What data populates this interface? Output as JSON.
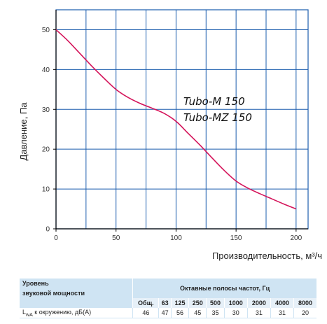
{
  "chart_data": {
    "type": "line",
    "xlabel": "Производительность, м³/ч",
    "ylabel": "Давление, Па",
    "xlim": [
      0,
      210
    ],
    "ylim": [
      0,
      55
    ],
    "x_ticks": [
      0,
      50,
      100,
      150,
      200
    ],
    "y_ticks": [
      0,
      10,
      20,
      30,
      40,
      50
    ],
    "x_grid": [
      0,
      25,
      50,
      75,
      100,
      125,
      150,
      175,
      200
    ],
    "y_grid": [
      0,
      10,
      20,
      30,
      40,
      50
    ],
    "grid": true,
    "annotations": [
      "Tubo-M 150",
      "Tubo-MZ 150"
    ],
    "line_color": "#d4145a",
    "grid_color": "#1a5cad",
    "series": [
      {
        "x": [
          0,
          10,
          20,
          30,
          40,
          50,
          60,
          70,
          80,
          90,
          100,
          110,
          120,
          130,
          140,
          150,
          160,
          170,
          180,
          190,
          200
        ],
        "y": [
          50,
          47.2,
          44,
          40.8,
          37.8,
          35,
          33,
          31.5,
          30.3,
          29,
          27,
          24,
          21,
          17.8,
          14.7,
          12,
          10.2,
          8.8,
          7.5,
          6.2,
          5
        ]
      }
    ]
  },
  "table": {
    "left_header_line1": "Уровень",
    "left_header_line2": "звуковой мощности",
    "group_header": "Октавные полосы частот, Гц",
    "bands": [
      "Общ.",
      "63",
      "125",
      "250",
      "500",
      "1000",
      "2000",
      "4000",
      "8000"
    ],
    "row_label_main": "L",
    "row_label_sub": "wA",
    "row_label_rest": " к окружению, дБ(А)",
    "values": [
      "46",
      "47",
      "56",
      "45",
      "35",
      "30",
      "31",
      "31",
      "20"
    ]
  }
}
